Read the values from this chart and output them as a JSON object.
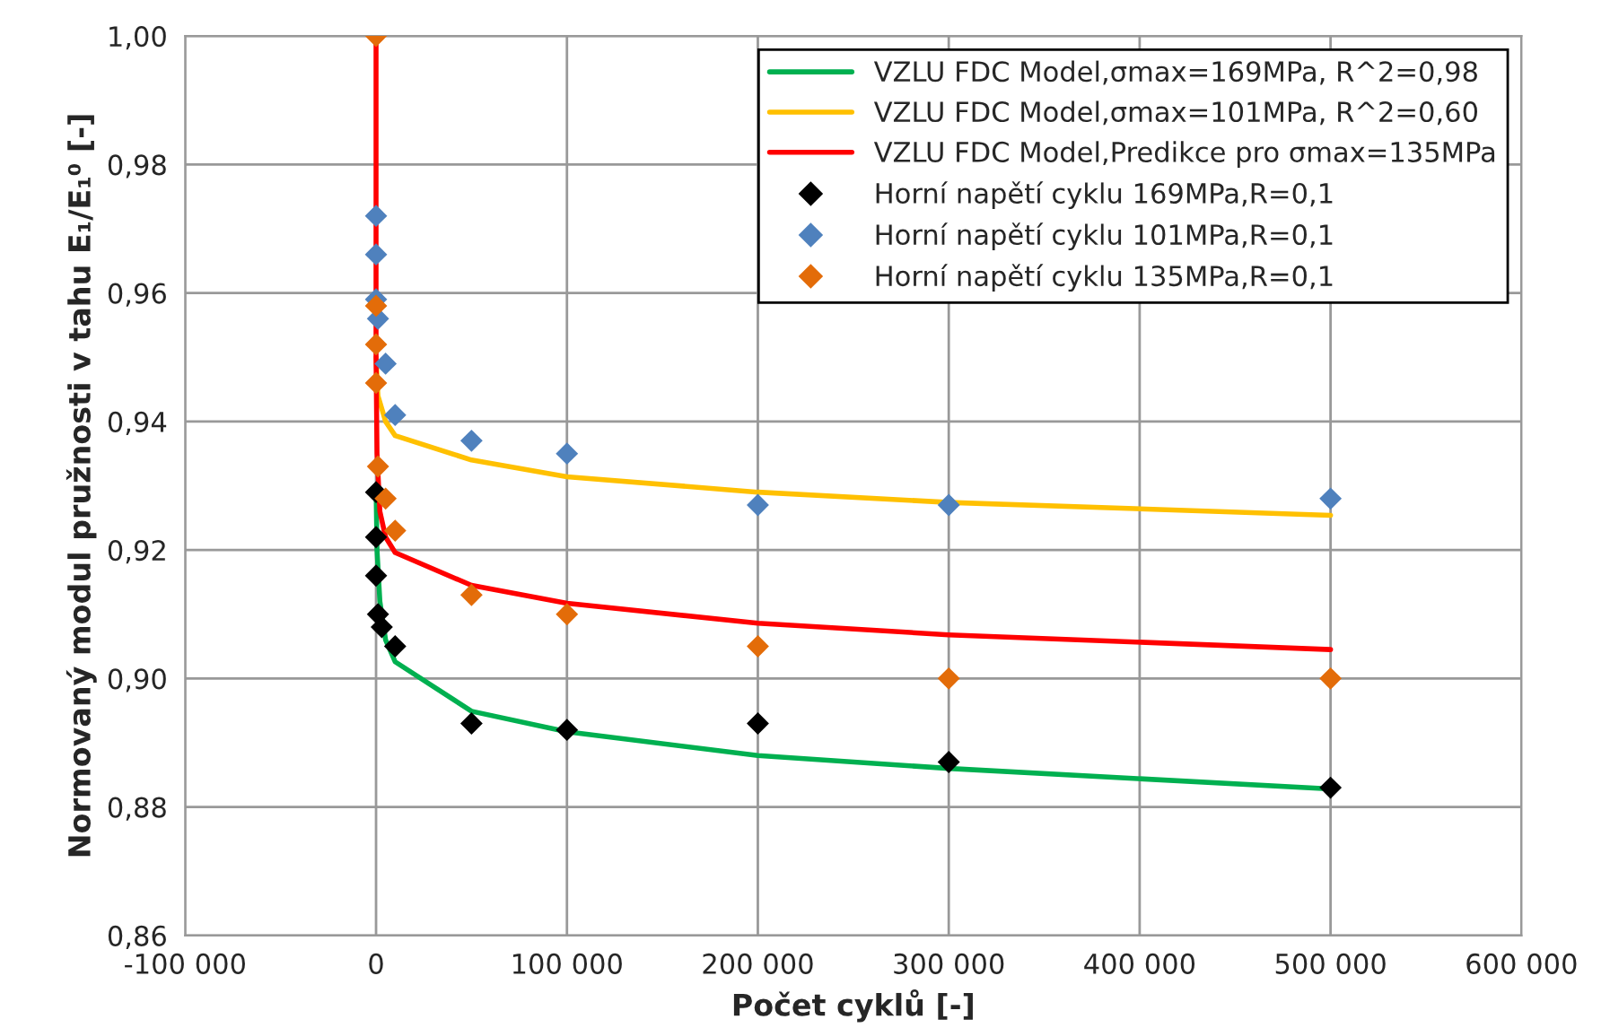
{
  "chart_data": {
    "type": "scatter",
    "xlabel": "Počet cyklů [-]",
    "ylabel": "Normovaný modul pružnosti v tahu E₁/E₁⁰ [-]",
    "xlim": [
      -100000,
      600000
    ],
    "xticks": [
      {
        "value": -100000,
        "label": "-100 000"
      },
      {
        "value": 0,
        "label": "0"
      },
      {
        "value": 100000,
        "label": "100 000"
      },
      {
        "value": 200000,
        "label": "200 000"
      },
      {
        "value": 300000,
        "label": "300 000"
      },
      {
        "value": 400000,
        "label": "400 000"
      },
      {
        "value": 500000,
        "label": "500 000"
      },
      {
        "value": 600000,
        "label": "600 000"
      }
    ],
    "ylim": [
      0.86,
      1.0
    ],
    "yticks": [
      {
        "value": 0.86,
        "label": "0,86"
      },
      {
        "value": 0.88,
        "label": "0,88"
      },
      {
        "value": 0.9,
        "label": "0,90"
      },
      {
        "value": 0.92,
        "label": "0,92"
      },
      {
        "value": 0.94,
        "label": "0,94"
      },
      {
        "value": 0.96,
        "label": "0,96"
      },
      {
        "value": 0.98,
        "label": "0,98"
      },
      {
        "value": 1.0,
        "label": "1,00"
      }
    ],
    "grid": true,
    "legend": "top right",
    "series": [
      {
        "name": "VZLU FDC Model,σmax=169MPa, R^2=0,98",
        "type": "line",
        "color": "#00b050",
        "marker": "none",
        "line_style": "solid",
        "x": [
          0,
          500,
          2000,
          5000,
          10000,
          50000,
          100000,
          200000,
          300000,
          500000
        ],
        "values": [
          0.93,
          0.92,
          0.912,
          0.906,
          0.9026,
          0.8949,
          0.8917,
          0.888,
          0.886,
          0.8828
        ]
      },
      {
        "name": "VZLU FDC Model,σmax=101MPa, R^2=0,60",
        "type": "line",
        "color": "#ffc000",
        "marker": "none",
        "line_style": "solid",
        "x": [
          0,
          1000,
          5000,
          10000,
          50000,
          100000,
          200000,
          300000,
          500000
        ],
        "values": [
          0.95,
          0.944,
          0.94,
          0.9378,
          0.934,
          0.9314,
          0.929,
          0.9274,
          0.9254
        ]
      },
      {
        "name": "VZLU FDC Model,Predikce pro σmax=135MPa",
        "type": "line",
        "color": "#ff0000",
        "marker": "none",
        "line_style": "solid",
        "x": [
          0,
          0,
          500,
          2000,
          5000,
          10000,
          50000,
          100000,
          200000,
          300000,
          500000
        ],
        "values": [
          1.0,
          0.95,
          0.935,
          0.926,
          0.922,
          0.9196,
          0.9145,
          0.9117,
          0.9086,
          0.9068,
          0.9045
        ]
      },
      {
        "name": "Horní napětí cyklu 169MPa,R=0,1",
        "color": "#000000",
        "marker": "diamond",
        "x": [
          0,
          0,
          0,
          1000,
          3000,
          10000,
          50000,
          100000,
          200000,
          300000,
          500000
        ],
        "values": [
          0.929,
          0.922,
          0.916,
          0.91,
          0.908,
          0.905,
          0.893,
          0.892,
          0.893,
          0.887,
          0.883
        ]
      },
      {
        "name": "Horní napětí cyklu 101MPa,R=0,1",
        "color": "#4f81bd",
        "marker": "diamond",
        "x": [
          0,
          0,
          0,
          1000,
          5000,
          10000,
          50000,
          100000,
          200000,
          300000,
          500000
        ],
        "values": [
          0.972,
          0.966,
          0.959,
          0.956,
          0.949,
          0.941,
          0.937,
          0.935,
          0.927,
          0.927,
          0.928
        ]
      },
      {
        "name": "Horní napětí cyklu 135MPa,R=0,1",
        "color": "#e36c09",
        "marker": "diamond",
        "x": [
          0,
          0,
          0,
          0,
          1000,
          5000,
          10000,
          50000,
          100000,
          200000,
          300000,
          500000
        ],
        "values": [
          1.0,
          0.958,
          0.952,
          0.946,
          0.933,
          0.928,
          0.923,
          0.913,
          0.91,
          0.905,
          0.9,
          0.9
        ]
      }
    ]
  }
}
